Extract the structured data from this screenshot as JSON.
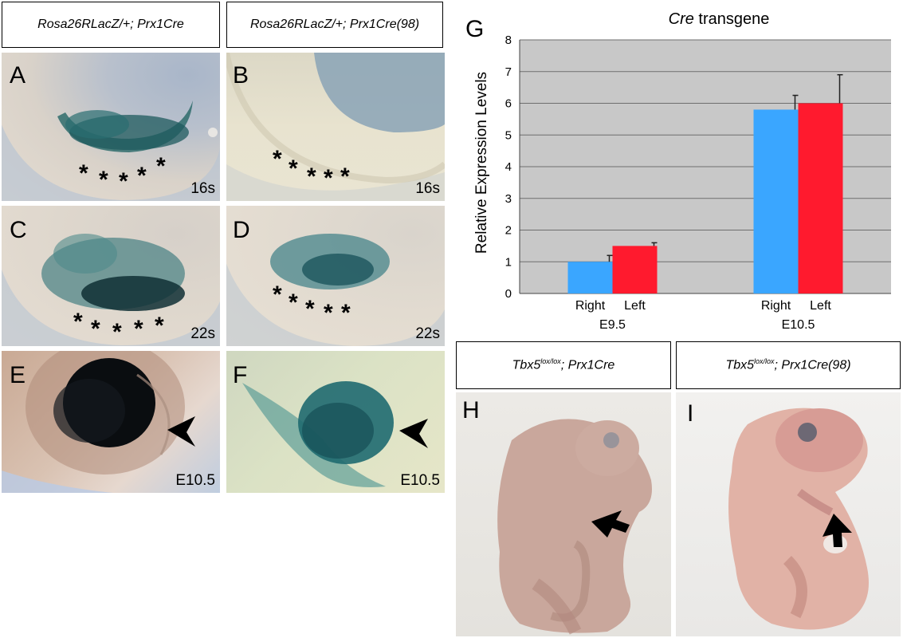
{
  "left_headers": {
    "col1": "Rosa26RLacZ/+; Prx1Cre",
    "col2": "Rosa26RLacZ/+; Prx1Cre(98)"
  },
  "panels": {
    "A": {
      "label": "A",
      "stage": "16s"
    },
    "B": {
      "label": "B",
      "stage": "16s"
    },
    "C": {
      "label": "C",
      "stage": "22s"
    },
    "D": {
      "label": "D",
      "stage": "22s"
    },
    "E": {
      "label": "E",
      "stage": "E10.5"
    },
    "F": {
      "label": "F",
      "stage": "E10.5"
    },
    "G": {
      "label": "G"
    },
    "H": {
      "label": "H"
    },
    "I": {
      "label": "I"
    }
  },
  "asterisk": "*",
  "bottom_headers": {
    "col1_gene": "Tbx5",
    "col1_sup": "lox/lox",
    "col1_rest": "; Prx1Cre",
    "col2_gene": "Tbx5",
    "col2_sup": "lox/lox",
    "col2_rest": "; Prx1Cre(98)"
  },
  "chart_data": {
    "type": "bar",
    "title_italic": "Cre",
    "title_rest": " transgene",
    "ylabel": "Relative Expression Levels",
    "ylim": [
      0,
      8
    ],
    "yticks": [
      "0",
      "1",
      "2",
      "3",
      "4",
      "5",
      "6",
      "7",
      "8"
    ],
    "grid": true,
    "groups": [
      {
        "name": "E9.5",
        "bars": [
          {
            "label": "Right",
            "value": 1.0,
            "error": 0.2,
            "color": "#3aa6ff"
          },
          {
            "label": "Left",
            "value": 1.5,
            "error": 0.1,
            "color": "#ff1a2e"
          }
        ]
      },
      {
        "name": "E10.5",
        "bars": [
          {
            "label": "Right",
            "value": 5.8,
            "error": 0.45,
            "color": "#3aa6ff"
          },
          {
            "label": "Left",
            "value": 6.0,
            "error": 0.9,
            "color": "#ff1a2e"
          }
        ]
      }
    ],
    "plot_background": "#c8c8c8"
  }
}
